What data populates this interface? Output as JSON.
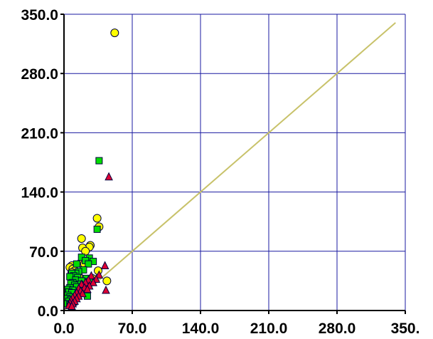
{
  "chart_data": {
    "type": "scatter",
    "title": "",
    "xlabel": "",
    "ylabel": "",
    "xlim": [
      0,
      350
    ],
    "ylim": [
      0,
      350
    ],
    "grid": true,
    "x_ticks": [
      0,
      70,
      140,
      210,
      280,
      350
    ],
    "y_ticks": [
      0,
      70,
      140,
      210,
      280,
      350
    ],
    "x_tick_labels": [
      "0.0",
      "70.0",
      "140.0",
      "210.0",
      "280.0",
      "350."
    ],
    "y_tick_labels": [
      "0.0",
      "70.0",
      "140.0",
      "210.0",
      "280.0",
      "350.0"
    ],
    "colors": {
      "grid": "#1a1aa0",
      "axis": "#000000",
      "reference_line": "#c8c26a",
      "circle": "#ffff00",
      "square": "#00dd00",
      "triangle": "#dd0033",
      "marker_edge": "#000040"
    },
    "reference_line": {
      "x": [
        0,
        340
      ],
      "y": [
        0,
        340
      ]
    },
    "series": [
      {
        "marker": "circle",
        "points": [
          [
            52,
            328
          ],
          [
            34,
            109
          ],
          [
            18,
            85
          ],
          [
            36,
            99
          ],
          [
            27,
            77
          ],
          [
            26,
            75
          ],
          [
            19,
            74
          ],
          [
            22,
            70
          ],
          [
            17,
            56
          ],
          [
            21,
            55
          ],
          [
            8,
            53
          ],
          [
            6,
            51
          ],
          [
            9,
            49
          ],
          [
            11,
            47
          ],
          [
            44,
            35
          ],
          [
            35,
            47
          ],
          [
            15,
            41
          ],
          [
            8,
            45
          ],
          [
            13,
            43
          ],
          [
            29,
            38
          ]
        ]
      },
      {
        "marker": "square",
        "points": [
          [
            36,
            177
          ],
          [
            34,
            96
          ],
          [
            18,
            63
          ],
          [
            26,
            62
          ],
          [
            30,
            58
          ],
          [
            22,
            59
          ],
          [
            13,
            55
          ],
          [
            25,
            55
          ],
          [
            20,
            48
          ],
          [
            15,
            46
          ],
          [
            12,
            44
          ],
          [
            8,
            44
          ],
          [
            10,
            41
          ],
          [
            6,
            40
          ],
          [
            14,
            39
          ],
          [
            23,
            38
          ],
          [
            12,
            36
          ],
          [
            18,
            35
          ],
          [
            26,
            34
          ],
          [
            9,
            33
          ],
          [
            7,
            32
          ],
          [
            16,
            31
          ],
          [
            11,
            30
          ],
          [
            20,
            29
          ],
          [
            13,
            28
          ],
          [
            6,
            27
          ],
          [
            4,
            25
          ],
          [
            9,
            24
          ],
          [
            22,
            23
          ],
          [
            5,
            22
          ],
          [
            8,
            21
          ],
          [
            15,
            20
          ],
          [
            4,
            18
          ],
          [
            24,
            17
          ],
          [
            6,
            16
          ],
          [
            3,
            14
          ],
          [
            7,
            13
          ],
          [
            5,
            11
          ],
          [
            10,
            10
          ],
          [
            3,
            8
          ],
          [
            6,
            7
          ]
        ]
      },
      {
        "marker": "triangle",
        "points": [
          [
            46,
            158
          ],
          [
            42,
            53
          ],
          [
            36,
            42
          ],
          [
            28,
            41
          ],
          [
            33,
            37
          ],
          [
            25,
            36
          ],
          [
            22,
            33
          ],
          [
            30,
            33
          ],
          [
            18,
            31
          ],
          [
            26,
            29
          ],
          [
            21,
            27
          ],
          [
            15,
            26
          ],
          [
            24,
            25
          ],
          [
            43,
            24
          ],
          [
            17,
            23
          ],
          [
            13,
            21
          ],
          [
            19,
            20
          ],
          [
            11,
            18
          ],
          [
            15,
            17
          ],
          [
            9,
            15
          ],
          [
            13,
            14
          ],
          [
            7,
            12
          ],
          [
            11,
            11
          ],
          [
            6,
            9
          ],
          [
            9,
            8
          ],
          [
            5,
            6
          ],
          [
            8,
            5
          ]
        ]
      }
    ]
  }
}
